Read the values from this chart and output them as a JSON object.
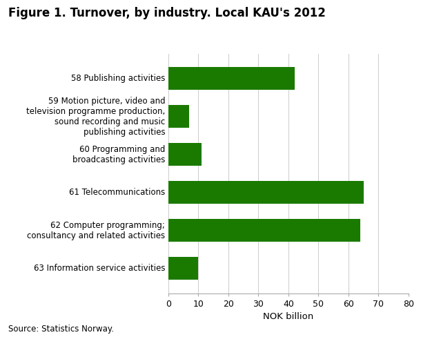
{
  "title": "Figure 1. Turnover, by industry. Local KAU's 2012",
  "categories": [
    "58 Publishing activities",
    "59 Motion picture, video and\ntelevision programme production,\nsound recording and music\npublishing activities",
    "60 Programming and\nbroadcasting activities",
    "61 Telecommunications",
    "62 Computer programming;\nconsultancy and related activities",
    "63 Information service activities"
  ],
  "values": [
    42,
    7,
    11,
    65,
    64,
    10
  ],
  "bar_color": "#1a7a00",
  "xlabel": "NOK billion",
  "xlim": [
    0,
    80
  ],
  "xticks": [
    0,
    10,
    20,
    30,
    40,
    50,
    60,
    70,
    80
  ],
  "source": "Source: Statistics Norway.",
  "title_fontsize": 12,
  "label_fontsize": 8.5,
  "tick_fontsize": 9,
  "source_fontsize": 8.5,
  "xlabel_fontsize": 9.5
}
